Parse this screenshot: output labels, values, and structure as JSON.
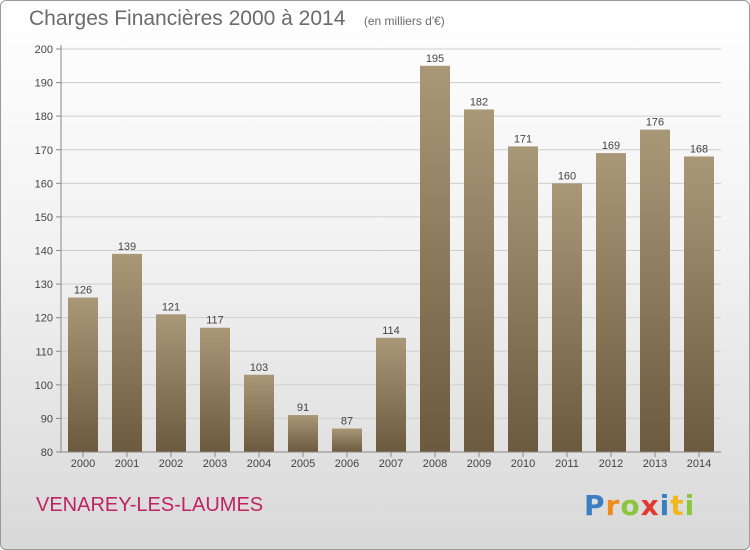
{
  "colors": {
    "bar_top": "#a99878",
    "bar_bottom": "#6b5a3e",
    "title": "#6b6b6b",
    "commune": "#c0245c"
  },
  "header": {
    "title": "Charges Financières 2000 à 2014",
    "subtitle": "(en milliers d'€)"
  },
  "footer": {
    "commune": "VENAREY-LES-LAUMES",
    "logo_letters": [
      {
        "char": "P",
        "color": "#3a7fc1"
      },
      {
        "char": "r",
        "color": "#f08a1c"
      },
      {
        "char": "o",
        "color": "#8cc63f"
      },
      {
        "char": "x",
        "color": "#e23a2e"
      },
      {
        "char": "i",
        "color": "#3a7fc1"
      },
      {
        "char": "t",
        "color": "#f0b81c"
      },
      {
        "char": "i",
        "color": "#8cc63f"
      }
    ]
  },
  "chart_data": {
    "type": "bar",
    "title": "Charges Financières 2000 à 2014",
    "subtitle": "(en milliers d'€)",
    "categories": [
      "2000",
      "2001",
      "2002",
      "2003",
      "2004",
      "2005",
      "2006",
      "2007",
      "2008",
      "2009",
      "2010",
      "2011",
      "2012",
      "2013",
      "2014"
    ],
    "values": [
      126,
      139,
      121,
      117,
      103,
      91,
      87,
      114,
      195,
      182,
      171,
      160,
      169,
      176,
      168
    ],
    "ylim": [
      80,
      200
    ],
    "yticks": [
      80,
      90,
      100,
      110,
      120,
      130,
      140,
      150,
      160,
      170,
      180,
      190,
      200
    ],
    "grid": true
  }
}
